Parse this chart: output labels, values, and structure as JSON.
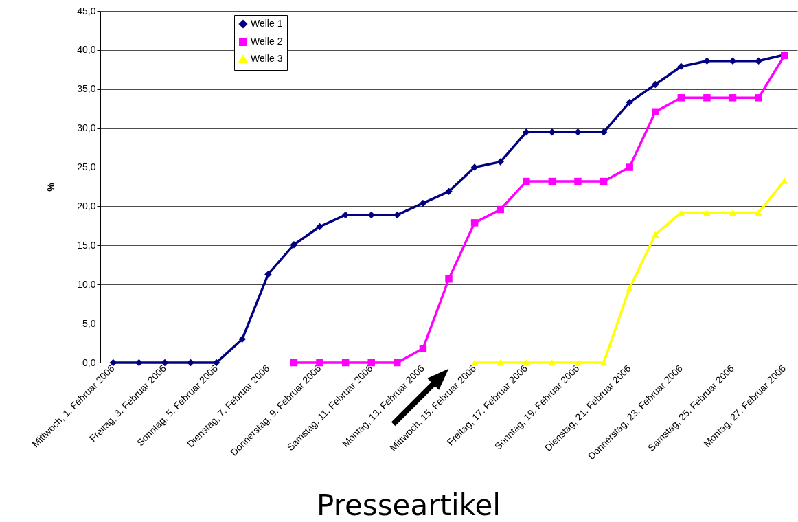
{
  "chart_data": {
    "type": "line",
    "ylabel": "%",
    "categories": [
      "Mittwoch, 1. Februar 2006",
      null,
      "Freitag, 3. Februar 2006",
      null,
      "Sonntag, 5. Februar 2006",
      null,
      "Dienstag, 7. Februar 2006",
      null,
      "Donnerstag, 9. Februar 2006",
      null,
      "Samstag, 11. Februar 2006",
      null,
      "Montag, 13. Februar 2006",
      null,
      "Mittwoch, 15. Februar 2006",
      null,
      "Freitag, 17. Februar 2006",
      null,
      "Sonntag, 19. Februar 2006",
      null,
      "Dienstag, 21. Februar 2006",
      null,
      "Donnerstag, 23. Februar 2006",
      null,
      "Samstag, 25. Februar 2006",
      null,
      "Montag, 27. Februar 2006"
    ],
    "series": [
      {
        "name": "Welle 1",
        "color": "#000080",
        "marker": "diamond",
        "values": [
          0,
          0,
          0,
          0,
          0,
          3.0,
          11.3,
          15.1,
          17.4,
          18.9,
          18.9,
          18.9,
          20.4,
          21.9,
          25.0,
          25.7,
          29.5,
          29.5,
          29.5,
          29.5,
          33.3,
          35.6,
          37.9,
          38.6,
          38.6,
          38.6,
          39.4
        ]
      },
      {
        "name": "Welle 2",
        "color": "#ff00ff",
        "marker": "square",
        "values": [
          null,
          null,
          null,
          null,
          null,
          null,
          null,
          0,
          0,
          0,
          0,
          0,
          1.8,
          10.7,
          17.9,
          19.6,
          23.2,
          23.2,
          23.2,
          23.2,
          25.0,
          32.1,
          33.9,
          33.9,
          33.9,
          33.9,
          39.3
        ]
      },
      {
        "name": "Welle 3",
        "color": "#ffff00",
        "marker": "triangle",
        "values": [
          null,
          null,
          null,
          null,
          null,
          null,
          null,
          null,
          null,
          null,
          null,
          null,
          null,
          null,
          0,
          0,
          0,
          0,
          0,
          0,
          9.5,
          16.4,
          19.2,
          19.2,
          19.2,
          19.2,
          23.3
        ]
      }
    ],
    "ylim": [
      0,
      45
    ],
    "yticks": [
      {
        "value": 0,
        "label": "0,0"
      },
      {
        "value": 5,
        "label": "5,0"
      },
      {
        "value": 10,
        "label": "10,0"
      },
      {
        "value": 15,
        "label": "15,0"
      },
      {
        "value": 20,
        "label": "20,0"
      },
      {
        "value": 25,
        "label": "25,0"
      },
      {
        "value": 30,
        "label": "30,0"
      },
      {
        "value": 35,
        "label": "35,0"
      },
      {
        "value": 40,
        "label": "40,0"
      },
      {
        "value": 45,
        "label": "45,0"
      }
    ],
    "grid": "y",
    "legend": "top left",
    "line_style": "solid",
    "annotations": [
      "Presseartikel"
    ]
  }
}
